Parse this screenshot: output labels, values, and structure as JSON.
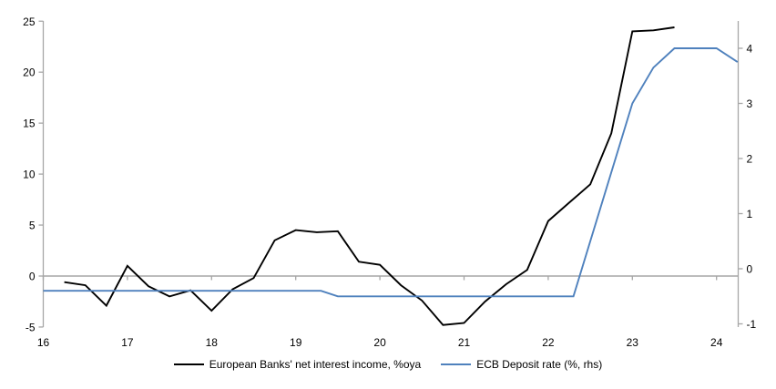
{
  "chart_data": {
    "type": "line",
    "title": "",
    "x_axis": {
      "ticks": [
        "16",
        "17",
        "18",
        "19",
        "20",
        "21",
        "22",
        "23",
        "24"
      ],
      "tick_values": [
        16,
        17,
        18,
        19,
        20,
        21,
        22,
        23,
        24
      ],
      "range": [
        16,
        24.26
      ]
    },
    "left_axis": {
      "label": "",
      "ticks": [
        "25",
        "20",
        "15",
        "10",
        "5",
        "0",
        "-5"
      ],
      "tick_values": [
        25,
        20,
        15,
        10,
        5,
        0,
        -5
      ],
      "range": [
        -5,
        25
      ]
    },
    "right_axis": {
      "label": "",
      "ticks": [
        "4",
        "3",
        "2",
        "1",
        "0",
        "-1"
      ],
      "tick_values": [
        4,
        3,
        2,
        1,
        0,
        -1
      ],
      "range": [
        -1.05,
        4.55
      ]
    },
    "grid": "zero-line-only",
    "legend_position": "bottom-center",
    "series": [
      {
        "name": "European Banks' net interest income, %oya",
        "axis": "left",
        "color": "#000000",
        "x": [
          16.25,
          16.5,
          16.75,
          17.0,
          17.25,
          17.5,
          17.75,
          18.0,
          18.25,
          18.5,
          18.75,
          19.0,
          19.25,
          19.5,
          19.75,
          20.0,
          20.25,
          20.5,
          20.75,
          21.0,
          21.25,
          21.5,
          21.75,
          22.0,
          22.25,
          22.5,
          22.75,
          23.0,
          23.25,
          23.5
        ],
        "values": [
          -0.6,
          -0.9,
          -2.9,
          1.0,
          -1.0,
          -2.0,
          -1.4,
          -3.4,
          -1.3,
          -0.2,
          3.5,
          4.5,
          4.3,
          4.4,
          1.4,
          1.1,
          -0.9,
          -2.4,
          -4.8,
          -4.6,
          -2.5,
          -0.8,
          0.6,
          5.4,
          7.2,
          9.0,
          14.0,
          24.0,
          24.1,
          24.4
        ]
      },
      {
        "name": "ECB Deposit rate (%, rhs)",
        "axis": "right",
        "color": "#4f81bd",
        "points": [
          [
            16.0,
            -0.4
          ],
          [
            19.3,
            -0.4
          ],
          [
            19.5,
            -0.5
          ],
          [
            22.3,
            -0.5
          ],
          [
            23.0,
            3.0
          ],
          [
            23.25,
            3.65
          ],
          [
            23.5,
            4.0
          ],
          [
            24.0,
            4.0
          ],
          [
            24.25,
            3.75
          ]
        ]
      }
    ]
  },
  "colors": {
    "background": "#ffffff",
    "axis": "#a6a6a6",
    "tick_text": "#000000"
  }
}
